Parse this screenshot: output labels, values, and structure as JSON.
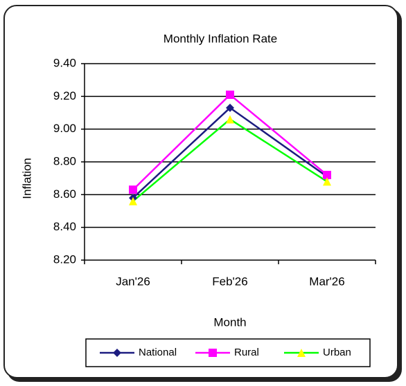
{
  "chart_data": {
    "type": "line",
    "title": "Monthly Inflation Rate",
    "x_label": "Month",
    "y_label": "Inflation",
    "categories": [
      "Jan'26",
      "Feb'26",
      "Mar'26"
    ],
    "series": [
      {
        "name": "National",
        "color": "#1c1c80",
        "marker": "diamond",
        "marker_color": "#1c1c80",
        "values": [
          8.58,
          9.13,
          8.71
        ]
      },
      {
        "name": "Rural",
        "color": "#ff00ff",
        "marker": "square",
        "marker_color": "#ff00ff",
        "values": [
          8.63,
          9.21,
          8.72
        ]
      },
      {
        "name": "Urban",
        "color": "#00ff00",
        "marker": "triangle",
        "marker_color": "#ffff00",
        "values": [
          8.56,
          9.06,
          8.68
        ]
      }
    ],
    "ylim": [
      8.2,
      9.4
    ],
    "yticks": [
      {
        "value": 8.2,
        "label": "8.20"
      },
      {
        "value": 8.4,
        "label": "8.40"
      },
      {
        "value": 8.6,
        "label": "8.60"
      },
      {
        "value": 8.8,
        "label": "8.80"
      },
      {
        "value": 9,
        "label": "9.00"
      },
      {
        "value": 9.2,
        "label": "9.20"
      },
      {
        "value": 9.4,
        "label": "9.40"
      }
    ],
    "grid": true,
    "legend": "bottom"
  }
}
